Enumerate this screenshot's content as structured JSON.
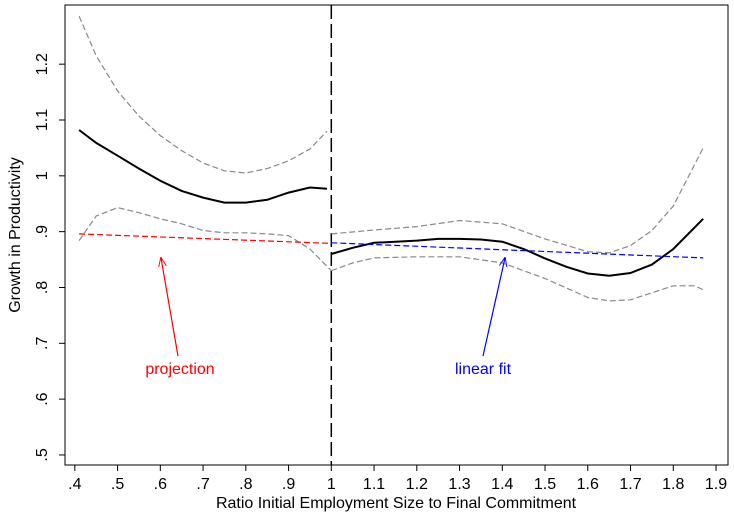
{
  "chart_data": {
    "type": "line",
    "x_label": "Ratio Initial Employment Size to Final Commitment",
    "y_label": "Growth in Productivity",
    "xlim": [
      0.377,
      1.928
    ],
    "ylim": [
      0.482,
      1.306
    ],
    "xticks": [
      {
        "value": 0.4,
        "label": ".4"
      },
      {
        "value": 0.5,
        "label": ".5"
      },
      {
        "value": 0.6,
        "label": ".6"
      },
      {
        "value": 0.7,
        "label": ".7"
      },
      {
        "value": 0.8,
        "label": ".8"
      },
      {
        "value": 0.9,
        "label": ".9"
      },
      1,
      1.1,
      1.2,
      1.3,
      1.4,
      1.5,
      1.6,
      1.7,
      1.8,
      1.9
    ],
    "yticks": [
      {
        "value": 0.5,
        "label": ".5"
      },
      {
        "value": 0.6,
        "label": ".6"
      },
      {
        "value": 0.7,
        "label": ".7"
      },
      {
        "value": 0.8,
        "label": ".8"
      },
      {
        "value": 0.9,
        "label": ".9"
      },
      1,
      1.1,
      1.2
    ],
    "vline": 1,
    "series": [
      {
        "color": "#000000",
        "dash": "solid",
        "width": 2,
        "x": [
          0.41,
          0.45,
          0.5,
          0.55,
          0.6,
          0.65,
          0.7,
          0.75,
          0.8,
          0.85,
          0.9,
          0.95,
          0.99
        ],
        "values": [
          1.082,
          1.059,
          1.036,
          1.013,
          0.991,
          0.973,
          0.961,
          0.952,
          0.952,
          0.957,
          0.97,
          0.979,
          0.977
        ]
      },
      {
        "color": "#888888",
        "dash": "dashed",
        "width": 1.2,
        "x": [
          0.41,
          0.45,
          0.5,
          0.55,
          0.6,
          0.65,
          0.7,
          0.75,
          0.8,
          0.85,
          0.9,
          0.95,
          0.99
        ],
        "values": [
          1.286,
          1.215,
          1.152,
          1.107,
          1.072,
          1.045,
          1.023,
          1.009,
          1.005,
          1.013,
          1.027,
          1.048,
          1.08
        ]
      },
      {
        "color": "#888888",
        "dash": "dashed",
        "width": 1.2,
        "x": [
          0.41,
          0.45,
          0.5,
          0.55,
          0.6,
          0.65,
          0.7,
          0.75,
          0.8,
          0.85,
          0.9,
          0.95,
          1.0
        ],
        "values": [
          0.884,
          0.928,
          0.943,
          0.934,
          0.923,
          0.914,
          0.902,
          0.898,
          0.898,
          0.896,
          0.893,
          0.869,
          0.83
        ]
      },
      {
        "color": "#000000",
        "dash": "solid",
        "width": 2,
        "x": [
          1.0,
          1.05,
          1.1,
          1.15,
          1.2,
          1.25,
          1.3,
          1.35,
          1.4,
          1.45,
          1.5,
          1.55,
          1.6,
          1.65,
          1.7,
          1.75,
          1.8,
          1.87
        ],
        "values": [
          0.86,
          0.871,
          0.88,
          0.882,
          0.884,
          0.887,
          0.887,
          0.886,
          0.882,
          0.869,
          0.852,
          0.837,
          0.825,
          0.821,
          0.826,
          0.841,
          0.869,
          0.923
        ]
      },
      {
        "color": "#888888",
        "dash": "dashed",
        "width": 1.2,
        "x": [
          1.0,
          1.1,
          1.2,
          1.3,
          1.4,
          1.5,
          1.6,
          1.65,
          1.7,
          1.75,
          1.8,
          1.87
        ],
        "values": [
          0.896,
          0.903,
          0.909,
          0.92,
          0.914,
          0.887,
          0.864,
          0.862,
          0.875,
          0.902,
          0.946,
          1.05
        ]
      },
      {
        "color": "#888888",
        "dash": "dashed",
        "width": 1.2,
        "x": [
          1.0,
          1.05,
          1.1,
          1.2,
          1.3,
          1.4,
          1.5,
          1.6,
          1.65,
          1.7,
          1.8,
          1.85,
          1.87
        ],
        "values": [
          0.83,
          0.844,
          0.853,
          0.855,
          0.855,
          0.844,
          0.816,
          0.782,
          0.776,
          0.778,
          0.803,
          0.803,
          0.796
        ]
      },
      {
        "color": "#ff0000",
        "dash": "dashed",
        "width": 1.2,
        "x": [
          0.41,
          1.0
        ],
        "values": [
          0.896,
          0.879
        ]
      },
      {
        "color": "#0000ff",
        "dash": "dashed",
        "width": 1.2,
        "x": [
          1.0,
          1.87
        ],
        "values": [
          0.88,
          0.853
        ]
      }
    ],
    "annotations": [
      {
        "text": "projection",
        "color": "#ff0000"
      },
      {
        "text": "linear fit",
        "color": "#0000ff"
      }
    ]
  }
}
